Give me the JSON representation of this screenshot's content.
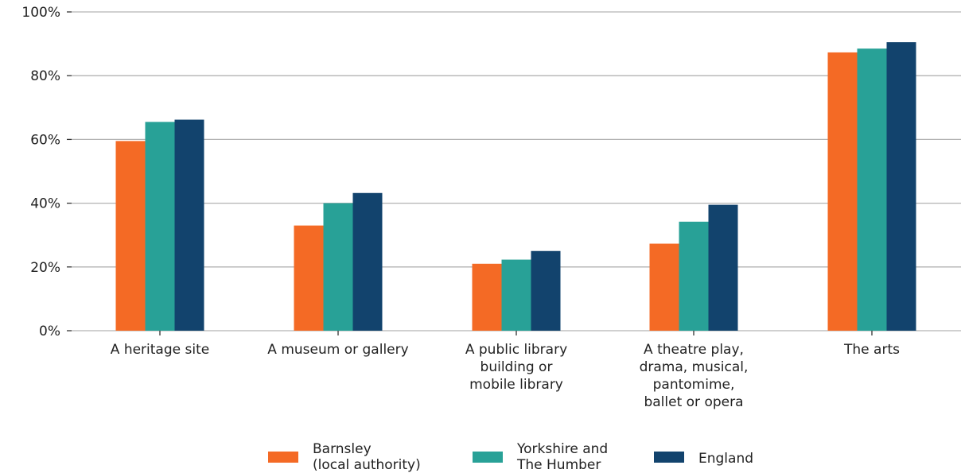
{
  "chart_data": {
    "type": "bar",
    "categories": [
      [
        "A heritage site"
      ],
      [
        "A museum or gallery"
      ],
      [
        "A public library",
        "building or",
        "mobile library"
      ],
      [
        "A theatre play,",
        "drama, musical,",
        "pantomime,",
        "ballet or opera"
      ],
      [
        "The arts"
      ]
    ],
    "series": [
      {
        "name": [
          "Barnsley",
          "(local authority)"
        ],
        "color": "#f46a25",
        "values": [
          59.5,
          33.0,
          21.0,
          27.3,
          87.3
        ]
      },
      {
        "name": [
          "Yorkshire and",
          "The Humber"
        ],
        "color": "#28a197",
        "values": [
          65.5,
          40.0,
          22.3,
          34.2,
          88.5
        ]
      },
      {
        "name": [
          "England"
        ],
        "color": "#12436d",
        "values": [
          66.2,
          43.2,
          25.0,
          39.5,
          90.5
        ]
      }
    ],
    "y_ticks": [
      "0%",
      "20%",
      "40%",
      "60%",
      "80%",
      "100%"
    ],
    "ylim": [
      0,
      100
    ],
    "grid": true,
    "legend_position": "bottom-center"
  }
}
